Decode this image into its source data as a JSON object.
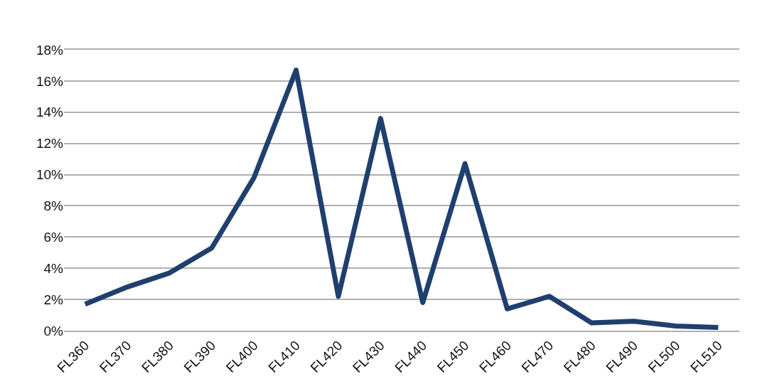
{
  "chart_data": {
    "type": "line",
    "categories": [
      "FL360",
      "FL370",
      "FL380",
      "FL390",
      "FL400",
      "FL410",
      "FL420",
      "FL430",
      "FL440",
      "FL450",
      "FL460",
      "FL470",
      "FL480",
      "FL490",
      "FL500",
      "FL510"
    ],
    "series": [
      {
        "color": "#1f3f6e",
        "values": [
          1.7,
          2.8,
          3.7,
          5.3,
          9.8,
          16.7,
          2.2,
          13.6,
          1.8,
          10.7,
          1.4,
          2.2,
          0.5,
          0.6,
          0.3,
          0.2
        ]
      }
    ],
    "ylim": [
      0,
      18
    ],
    "yticks": [
      {
        "value": 0,
        "label": "0%"
      },
      {
        "value": 2,
        "label": "2%"
      },
      {
        "value": 4,
        "label": "4%"
      },
      {
        "value": 6,
        "label": "6%"
      },
      {
        "value": 8,
        "label": "8%"
      },
      {
        "value": 10,
        "label": "10%"
      },
      {
        "value": 12,
        "label": "12%"
      },
      {
        "value": 14,
        "label": "14%"
      },
      {
        "value": 16,
        "label": "16%"
      },
      {
        "value": 18,
        "label": "18%"
      }
    ],
    "grid": "y",
    "marker": "none",
    "line_style": "solid"
  }
}
